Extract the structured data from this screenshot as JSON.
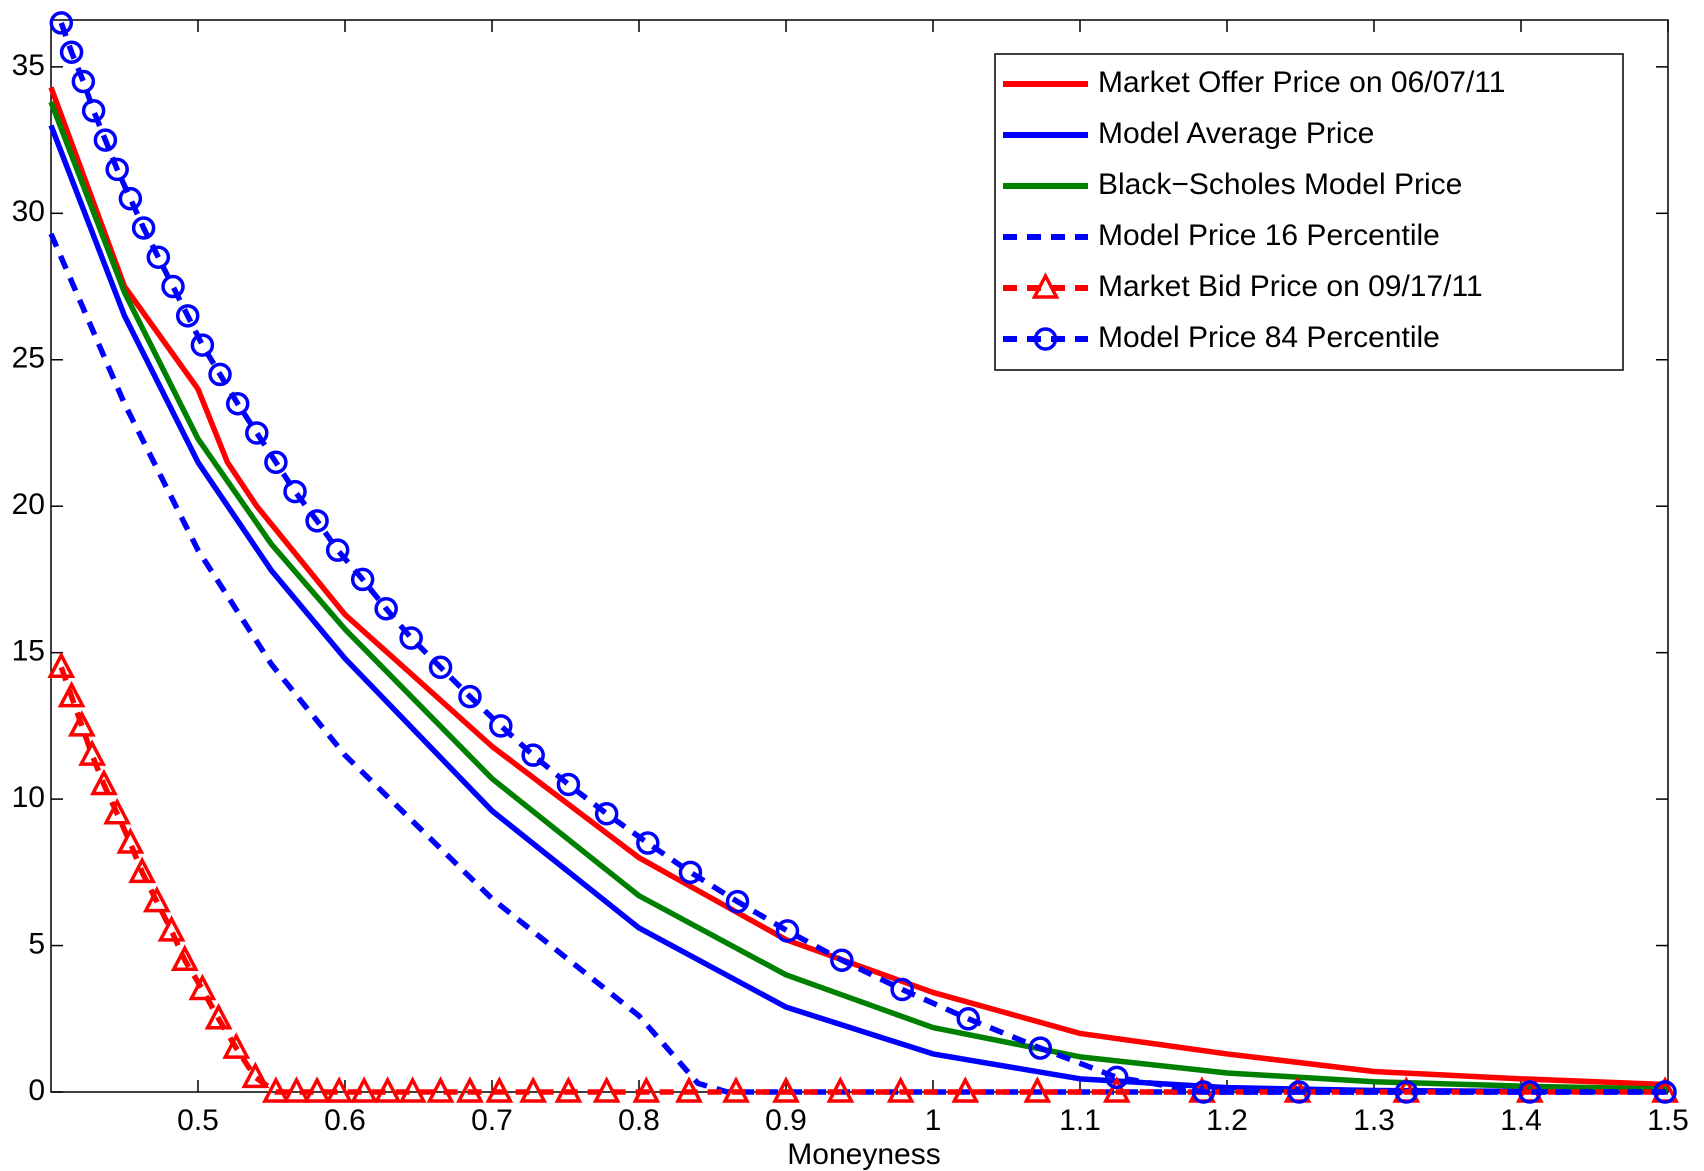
{
  "chart_data": {
    "type": "line",
    "x_label": "Moneyness",
    "xlim": [
      0.4,
      1.5
    ],
    "xticks": [
      0.5,
      0.6,
      0.7,
      0.8,
      0.9,
      1,
      1.1,
      1.2,
      1.3,
      1.4,
      1.5
    ],
    "ylim": [
      0,
      36.6
    ],
    "yticks": [
      0,
      5,
      10,
      15,
      20,
      25,
      30,
      35
    ],
    "legend": "top-right",
    "series": [
      {
        "name": "Market Offer Price on 06/07/11",
        "color": "#ff0000",
        "dashed": false,
        "marker": null,
        "x": [
          0.4,
          0.45,
          0.5,
          0.52,
          0.54,
          0.6,
          0.7,
          0.8,
          0.9,
          1.0,
          1.1,
          1.2,
          1.3,
          1.4,
          1.5
        ],
        "values": [
          34.3,
          27.5,
          24,
          21.5,
          20,
          16.3,
          11.8,
          8.0,
          5.2,
          3.4,
          2.0,
          1.3,
          0.7,
          0.45,
          0.25
        ]
      },
      {
        "name": "Model Average Price",
        "color": "#0000ff",
        "dashed": false,
        "marker": null,
        "x": [
          0.4,
          0.45,
          0.5,
          0.55,
          0.6,
          0.7,
          0.8,
          0.9,
          1.0,
          1.1,
          1.2,
          1.3,
          1.4,
          1.5
        ],
        "values": [
          33,
          26.5,
          21.5,
          17.8,
          14.8,
          9.6,
          5.6,
          2.9,
          1.3,
          0.45,
          0.15,
          0.05,
          0.02,
          0.01
        ]
      },
      {
        "name": "Black−Scholes Model Price",
        "color": "#008000",
        "dashed": false,
        "marker": null,
        "x": [
          0.4,
          0.45,
          0.5,
          0.55,
          0.6,
          0.7,
          0.8,
          0.9,
          1.0,
          1.1,
          1.2,
          1.3,
          1.4,
          1.5
        ],
        "values": [
          33.8,
          27.3,
          22.3,
          18.7,
          15.8,
          10.7,
          6.7,
          4.0,
          2.2,
          1.2,
          0.65,
          0.35,
          0.2,
          0.1
        ]
      },
      {
        "name": "Model Price 16 Percentile",
        "color": "#0000ff",
        "dashed": true,
        "marker": null,
        "x": [
          0.4,
          0.45,
          0.5,
          0.55,
          0.6,
          0.7,
          0.8,
          0.84,
          0.86,
          1.0,
          1.5
        ],
        "values": [
          29.3,
          23.5,
          18.5,
          14.6,
          11.5,
          6.6,
          2.6,
          0.3,
          0,
          0,
          0
        ]
      },
      {
        "name": "Market Bid Price on 09/17/11",
        "color": "#ff0000",
        "dashed": true,
        "marker": "triangle",
        "x": [
          0.407,
          0.414,
          0.421,
          0.428,
          0.436,
          0.445,
          0.454,
          0.462,
          0.472,
          0.482,
          0.491,
          0.503,
          0.514,
          0.526,
          0.539,
          0.553,
          0.567,
          0.581,
          0.596,
          0.613,
          0.629,
          0.646,
          0.665,
          0.685,
          0.705,
          0.728,
          0.752,
          0.778,
          0.805,
          0.834,
          0.866,
          0.9,
          0.937,
          0.978,
          1.022,
          1.071,
          1.125,
          1.183,
          1.248,
          1.322,
          1.406,
          1.498
        ],
        "values": [
          14.5,
          13.5,
          12.5,
          11.5,
          10.5,
          9.5,
          8.5,
          7.5,
          6.5,
          5.5,
          4.5,
          3.5,
          2.5,
          1.5,
          0.5,
          0,
          0,
          0,
          0,
          0,
          0,
          0,
          0,
          0,
          0,
          0,
          0,
          0,
          0,
          0,
          0,
          0,
          0,
          0,
          0,
          0,
          0,
          0,
          0,
          0,
          0,
          0
        ]
      },
      {
        "name": "Model Price 84 Percentile",
        "color": "#0000ff",
        "dashed": true,
        "marker": "circle",
        "x": [
          0.407,
          0.414,
          0.422,
          0.429,
          0.437,
          0.445,
          0.454,
          0.463,
          0.473,
          0.483,
          0.493,
          0.503,
          0.515,
          0.527,
          0.54,
          0.553,
          0.566,
          0.581,
          0.595,
          0.612,
          0.628,
          0.645,
          0.665,
          0.685,
          0.706,
          0.728,
          0.752,
          0.778,
          0.806,
          0.835,
          0.867,
          0.901,
          0.938,
          0.979,
          1.024,
          1.073,
          1.125,
          1.184,
          1.249,
          1.322,
          1.406,
          1.498
        ],
        "values": [
          36.5,
          35.5,
          34.5,
          33.5,
          32.5,
          31.5,
          30.5,
          29.5,
          28.5,
          27.5,
          26.5,
          25.5,
          24.5,
          23.5,
          22.5,
          21.5,
          20.5,
          19.5,
          18.5,
          17.5,
          16.5,
          15.5,
          14.5,
          13.5,
          12.5,
          11.5,
          10.5,
          9.5,
          8.5,
          7.5,
          6.5,
          5.5,
          4.5,
          3.5,
          2.5,
          1.5,
          0.5,
          0,
          0,
          0,
          0,
          0
        ]
      }
    ]
  }
}
